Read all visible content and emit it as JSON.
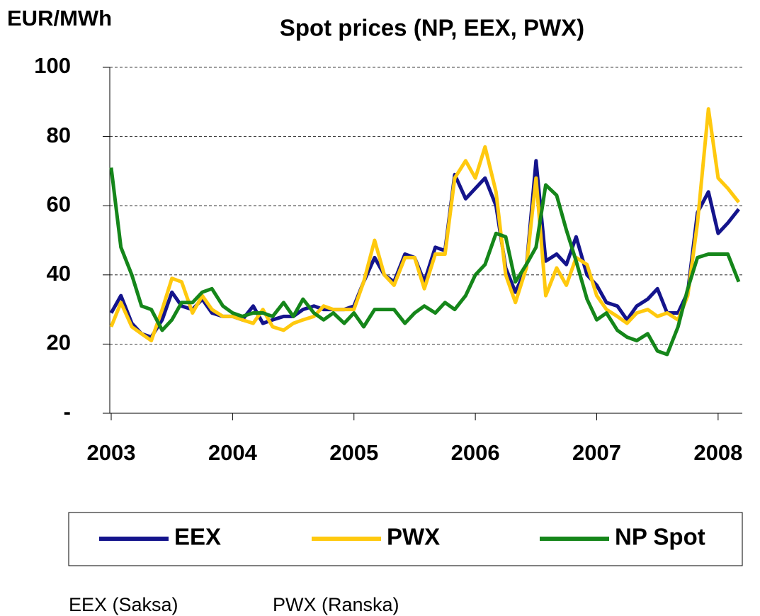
{
  "chart_data": {
    "type": "line",
    "title": "Spot prices (NP, EEX, PWX)",
    "y_label": "EUR/MWh",
    "annotations": [
      "EEX (Saksa)",
      "PWX (Ranska)"
    ],
    "x": [
      2003.0,
      2003.08,
      2003.17,
      2003.25,
      2003.33,
      2003.42,
      2003.5,
      2003.58,
      2003.67,
      2003.75,
      2003.83,
      2003.92,
      2004.0,
      2004.08,
      2004.17,
      2004.25,
      2004.33,
      2004.42,
      2004.5,
      2004.58,
      2004.67,
      2004.75,
      2004.83,
      2004.92,
      2005.0,
      2005.08,
      2005.17,
      2005.25,
      2005.33,
      2005.42,
      2005.5,
      2005.58,
      2005.67,
      2005.75,
      2005.83,
      2005.92,
      2006.0,
      2006.08,
      2006.17,
      2006.25,
      2006.33,
      2006.42,
      2006.5,
      2006.58,
      2006.67,
      2006.75,
      2006.83,
      2006.92,
      2007.0,
      2007.08,
      2007.17,
      2007.25,
      2007.33,
      2007.42,
      2007.5,
      2007.58,
      2007.67,
      2007.75,
      2007.83,
      2007.92,
      2008.0,
      2008.08,
      2008.17
    ],
    "series": [
      {
        "name": "EEX",
        "color": "#14148c",
        "values": [
          29,
          34,
          26,
          23,
          22,
          27,
          35,
          31,
          30,
          33,
          29,
          28,
          28,
          27,
          31,
          26,
          27,
          28,
          28,
          30,
          31,
          30,
          30,
          30,
          31,
          38,
          45,
          40,
          38,
          46,
          45,
          38,
          48,
          47,
          69,
          62,
          65,
          68,
          60,
          42,
          35,
          42,
          73,
          44,
          46,
          43,
          51,
          40,
          37,
          32,
          31,
          27,
          31,
          33,
          36,
          29,
          29,
          35,
          58,
          64,
          52,
          55,
          59
        ]
      },
      {
        "name": "PWX",
        "color": "#ffc90e",
        "values": [
          25,
          32,
          25,
          23,
          21,
          30,
          39,
          38,
          29,
          34,
          30,
          28,
          28,
          27,
          26,
          30,
          25,
          24,
          26,
          27,
          28,
          31,
          30,
          30,
          30,
          38,
          50,
          40,
          37,
          45,
          45,
          36,
          46,
          46,
          68,
          73,
          68,
          77,
          64,
          40,
          32,
          42,
          68,
          34,
          42,
          37,
          45,
          43,
          34,
          30,
          28,
          26,
          29,
          30,
          28,
          29,
          27,
          34,
          55,
          88,
          68,
          65,
          61
        ]
      },
      {
        "name": "NP Spot",
        "color": "#15861a",
        "values": [
          71,
          48,
          40,
          31,
          30,
          24,
          27,
          32,
          32,
          35,
          36,
          31,
          29,
          28,
          29,
          29,
          28,
          32,
          28,
          33,
          29,
          27,
          29,
          26,
          29,
          25,
          30,
          30,
          30,
          26,
          29,
          31,
          29,
          32,
          30,
          34,
          40,
          43,
          52,
          51,
          38,
          43,
          48,
          66,
          63,
          53,
          44,
          33,
          27,
          29,
          24,
          22,
          21,
          23,
          18,
          17,
          25,
          36,
          45,
          46,
          46,
          46,
          38
        ]
      }
    ],
    "xlim": [
      2003.0,
      2008.17
    ],
    "xticks": [
      2003,
      2004,
      2005,
      2006,
      2007,
      2008
    ],
    "ylim": [
      0,
      100
    ],
    "yticks": [
      {
        "value": 0,
        "label": "-"
      },
      20,
      40,
      60,
      80,
      100
    ],
    "grid": true
  }
}
